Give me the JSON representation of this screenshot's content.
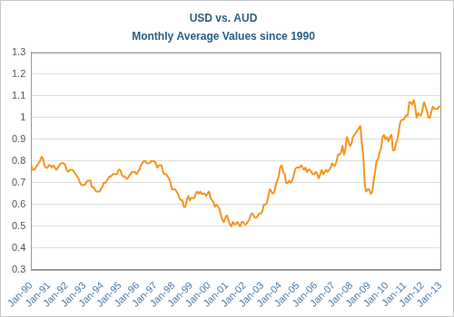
{
  "chart_data": {
    "type": "line",
    "title": "USD vs. AUD",
    "subtitle": "Monthly Average Values since 1990",
    "categories": [
      "Jan-90",
      null,
      null,
      null,
      null,
      null,
      null,
      null,
      null,
      null,
      null,
      null,
      "Jan-91",
      null,
      null,
      null,
      null,
      null,
      null,
      null,
      null,
      null,
      null,
      null,
      "Jan-92",
      null,
      null,
      null,
      null,
      null,
      null,
      null,
      null,
      null,
      null,
      null,
      "Jan-93",
      null,
      null,
      null,
      null,
      null,
      null,
      null,
      null,
      null,
      null,
      null,
      "Jan-94",
      null,
      null,
      null,
      null,
      null,
      null,
      null,
      null,
      null,
      null,
      null,
      "Jan-95",
      null,
      null,
      null,
      null,
      null,
      null,
      null,
      null,
      null,
      null,
      null,
      "Jan-96",
      null,
      null,
      null,
      null,
      null,
      null,
      null,
      null,
      null,
      null,
      null,
      "Jan-97",
      null,
      null,
      null,
      null,
      null,
      null,
      null,
      null,
      null,
      null,
      null,
      "Jan-98",
      null,
      null,
      null,
      null,
      null,
      null,
      null,
      null,
      null,
      null,
      null,
      "Jan-99",
      null,
      null,
      null,
      null,
      null,
      null,
      null,
      null,
      null,
      null,
      null,
      "Jan-00",
      null,
      null,
      null,
      null,
      null,
      null,
      null,
      null,
      null,
      null,
      null,
      "Jan-01",
      null,
      null,
      null,
      null,
      null,
      null,
      null,
      null,
      null,
      null,
      null,
      "Jan-02",
      null,
      null,
      null,
      null,
      null,
      null,
      null,
      null,
      null,
      null,
      null,
      "Jan-03",
      null,
      null,
      null,
      null,
      null,
      null,
      null,
      null,
      null,
      null,
      null,
      "Jan-04",
      null,
      null,
      null,
      null,
      null,
      null,
      null,
      null,
      null,
      null,
      null,
      "Jan-05",
      null,
      null,
      null,
      null,
      null,
      null,
      null,
      null,
      null,
      null,
      null,
      "Jan-06",
      null,
      null,
      null,
      null,
      null,
      null,
      null,
      null,
      null,
      null,
      null,
      "Jan-07",
      null,
      null,
      null,
      null,
      null,
      null,
      null,
      null,
      null,
      null,
      null,
      "Jan-08",
      null,
      null,
      null,
      null,
      null,
      null,
      null,
      null,
      null,
      null,
      null,
      "Jan-09",
      null,
      null,
      null,
      null,
      null,
      null,
      null,
      null,
      null,
      null,
      null,
      "Jan-10",
      null,
      null,
      null,
      null,
      null,
      null,
      null,
      null,
      null,
      null,
      null,
      "Jan-11",
      null,
      null,
      null,
      null,
      null,
      null,
      null,
      null,
      null,
      null,
      null,
      "Jan-12",
      null,
      null,
      null,
      null,
      null,
      null,
      null,
      null,
      null,
      null,
      null,
      "Jan-13"
    ],
    "values": [
      0.78,
      0.76,
      0.76,
      0.77,
      0.78,
      0.79,
      0.8,
      0.82,
      0.81,
      0.78,
      0.77,
      0.77,
      0.78,
      0.78,
      0.77,
      0.78,
      0.77,
      0.76,
      0.77,
      0.78,
      0.79,
      0.79,
      0.79,
      0.78,
      0.76,
      0.75,
      0.76,
      0.76,
      0.76,
      0.75,
      0.74,
      0.73,
      0.72,
      0.7,
      0.69,
      0.69,
      0.69,
      0.7,
      0.71,
      0.71,
      0.71,
      0.68,
      0.68,
      0.67,
      0.66,
      0.66,
      0.66,
      0.67,
      0.68,
      0.7,
      0.7,
      0.71,
      0.72,
      0.73,
      0.73,
      0.74,
      0.74,
      0.74,
      0.74,
      0.76,
      0.76,
      0.74,
      0.73,
      0.73,
      0.72,
      0.72,
      0.73,
      0.74,
      0.75,
      0.75,
      0.75,
      0.74,
      0.75,
      0.76,
      0.78,
      0.79,
      0.8,
      0.8,
      0.79,
      0.79,
      0.79,
      0.8,
      0.8,
      0.8,
      0.79,
      0.77,
      0.78,
      0.78,
      0.78,
      0.75,
      0.74,
      0.74,
      0.73,
      0.72,
      0.7,
      0.67,
      0.67,
      0.67,
      0.66,
      0.65,
      0.63,
      0.62,
      0.62,
      0.59,
      0.59,
      0.62,
      0.64,
      0.62,
      0.63,
      0.63,
      0.63,
      0.65,
      0.66,
      0.65,
      0.66,
      0.65,
      0.65,
      0.65,
      0.64,
      0.65,
      0.66,
      0.63,
      0.62,
      0.61,
      0.59,
      0.6,
      0.59,
      0.58,
      0.55,
      0.53,
      0.52,
      0.54,
      0.55,
      0.53,
      0.51,
      0.5,
      0.52,
      0.51,
      0.51,
      0.52,
      0.51,
      0.5,
      0.52,
      0.52,
      0.51,
      0.51,
      0.52,
      0.53,
      0.55,
      0.56,
      0.55,
      0.54,
      0.54,
      0.55,
      0.56,
      0.56,
      0.57,
      0.6,
      0.6,
      0.61,
      0.64,
      0.67,
      0.66,
      0.65,
      0.66,
      0.69,
      0.71,
      0.73,
      0.77,
      0.78,
      0.75,
      0.74,
      0.7,
      0.7,
      0.71,
      0.7,
      0.71,
      0.73,
      0.76,
      0.77,
      0.77,
      0.77,
      0.78,
      0.77,
      0.76,
      0.77,
      0.75,
      0.76,
      0.76,
      0.75,
      0.74,
      0.74,
      0.75,
      0.74,
      0.72,
      0.74,
      0.76,
      0.74,
      0.75,
      0.76,
      0.75,
      0.76,
      0.77,
      0.79,
      0.78,
      0.78,
      0.8,
      0.83,
      0.83,
      0.84,
      0.87,
      0.83,
      0.86,
      0.91,
      0.89,
      0.87,
      0.88,
      0.91,
      0.92,
      0.93,
      0.94,
      0.95,
      0.96,
      0.88,
      0.82,
      0.7,
      0.66,
      0.67,
      0.67,
      0.65,
      0.66,
      0.71,
      0.75,
      0.8,
      0.81,
      0.84,
      0.86,
      0.91,
      0.92,
      0.9,
      0.91,
      0.89,
      0.91,
      0.92,
      0.85,
      0.85,
      0.88,
      0.9,
      0.94,
      0.98,
      0.99,
      0.99,
      1.0,
      1.01,
      1.01,
      1.07,
      1.07,
      1.06,
      1.08,
      1.05,
      1.0,
      1.02,
      1.01,
      1.01,
      1.04,
      1.07,
      1.05,
      1.03,
      1.0,
      1.0,
      1.03,
      1.05,
      1.04,
      1.04,
      1.04,
      1.05,
      1.05
    ],
    "color": "#f7931e",
    "ylim": [
      0.3,
      1.3
    ],
    "yticks": [
      0.3,
      0.4,
      0.5,
      0.6,
      0.7,
      0.8,
      0.9,
      1,
      1.1,
      1.2,
      1.3
    ],
    "grid": true
  }
}
